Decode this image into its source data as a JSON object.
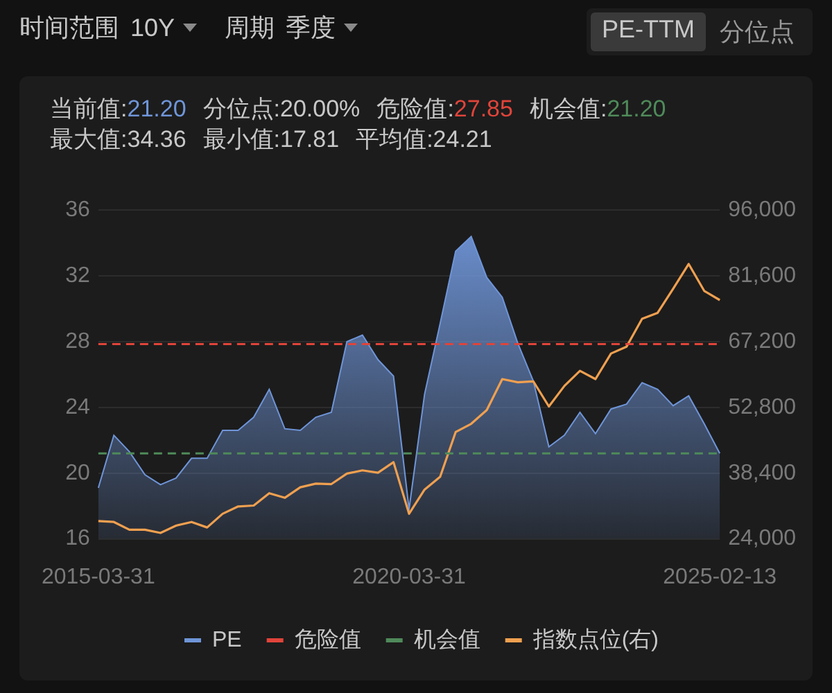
{
  "chart_data": {
    "type": "area",
    "annotations": [
      "时间范围",
      "10Y",
      "周期",
      "季度",
      "PE-TTM",
      "分位点",
      "当前值:21.20",
      "分位点:20.00%",
      "危险值:27.85",
      "机会值:21.20",
      "最大值:34.36",
      "最小值:17.81",
      "平均值:24.21"
    ],
    "categories": [
      "2015-03-31",
      null,
      null,
      null,
      null,
      null,
      null,
      null,
      null,
      null,
      null,
      null,
      null,
      null,
      null,
      null,
      null,
      null,
      null,
      null,
      "2020-03-31",
      null,
      null,
      null,
      null,
      null,
      null,
      null,
      null,
      null,
      null,
      null,
      null,
      null,
      null,
      null,
      null,
      null,
      null,
      null,
      "2025-02-13"
    ],
    "series": [
      {
        "name": "PE",
        "color": "#6f95d8",
        "values": [
          19.1,
          22.3,
          21.3,
          19.9,
          19.3,
          19.7,
          20.9,
          20.9,
          22.6,
          22.6,
          23.4,
          25.1,
          22.7,
          22.6,
          23.4,
          23.7,
          28.0,
          28.4,
          26.9,
          25.9,
          17.8,
          24.8,
          29.1,
          33.5,
          34.4,
          31.9,
          30.7,
          27.9,
          25.6,
          21.6,
          22.3,
          23.7,
          22.4,
          23.9,
          24.2,
          25.5,
          25.1,
          24.1,
          24.7,
          23.0,
          21.2
        ]
      },
      {
        "name": "指数点位(右)",
        "type": "line",
        "axis": "y2",
        "color": "#f0a050",
        "values": [
          27900,
          27700,
          26000,
          26000,
          25300,
          26900,
          27700,
          26500,
          29500,
          31100,
          31300,
          34000,
          33000,
          35300,
          36100,
          36000,
          38300,
          39000,
          38500,
          40800,
          29500,
          34800,
          37600,
          47400,
          49200,
          52200,
          59000,
          58300,
          58500,
          53000,
          57500,
          60800,
          59000,
          64600,
          66100,
          72200,
          73500,
          78800,
          84200,
          78300,
          76300
        ]
      }
    ],
    "ref_lines": [
      {
        "axis": "y",
        "value": 27.85,
        "label": "危险值",
        "color": "#e0443a",
        "line_style": "dashed"
      },
      {
        "axis": "y",
        "value": 21.2,
        "label": "机会值",
        "color": "#4f8a5a",
        "line_style": "dashed"
      }
    ],
    "ylim": [
      16,
      36
    ],
    "yticks": [
      16,
      20,
      24,
      28,
      32,
      36
    ],
    "y2lim": [
      24000,
      96000
    ],
    "y2ticks": [
      {
        "value": 24000,
        "label": "24,000"
      },
      {
        "value": 38400,
        "label": "38,400"
      },
      {
        "value": 52800,
        "label": "52,800"
      },
      {
        "value": 67200,
        "label": "67,200"
      },
      {
        "value": 81600,
        "label": "81,600"
      },
      {
        "value": 96000,
        "label": "96,000"
      }
    ],
    "grid": "y",
    "legend": "bottom"
  }
}
